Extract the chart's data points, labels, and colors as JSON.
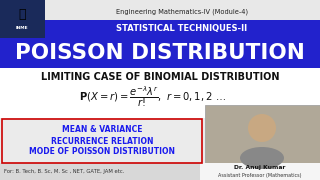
{
  "top_text1": "Engineering Mathematics-IV (Module-4)",
  "top_text2": "STATISTICAL TECHNIQUES-II",
  "top_text2_bg": "#2222cc",
  "main_title": "POISSON DISTRIBUTION",
  "main_title_bg": "#2222cc",
  "subtitle": "LIMITING CASE OF BINOMIAL DISTRIBUTION",
  "bullet1": "MEAN & VARIANCE",
  "bullet2": "RECURRENCE RELATION",
  "bullet3": "MODE OF POISSON DISTRIBUTION",
  "bullets_border": "#cc0000",
  "bullets_bg": "#ebebeb",
  "bullets_color": "#1a1aee",
  "bottom_left": "For: B. Tech, B. Sc, M. Sc , NET, GATE, JAM etc.",
  "bottom_right1": "Dr. Anuj Kumar",
  "bottom_right2": "Assistant Professor (Mathematics)",
  "bg_color": "#ffffff",
  "subtitle_color": "#111111",
  "formula_color": "#111111",
  "logo_bg": "#1a2a5a",
  "top_bar_bg": "#e8e8e8",
  "bottom_bar_bg": "#d8d8d8",
  "photo_bg": "#b0a898"
}
